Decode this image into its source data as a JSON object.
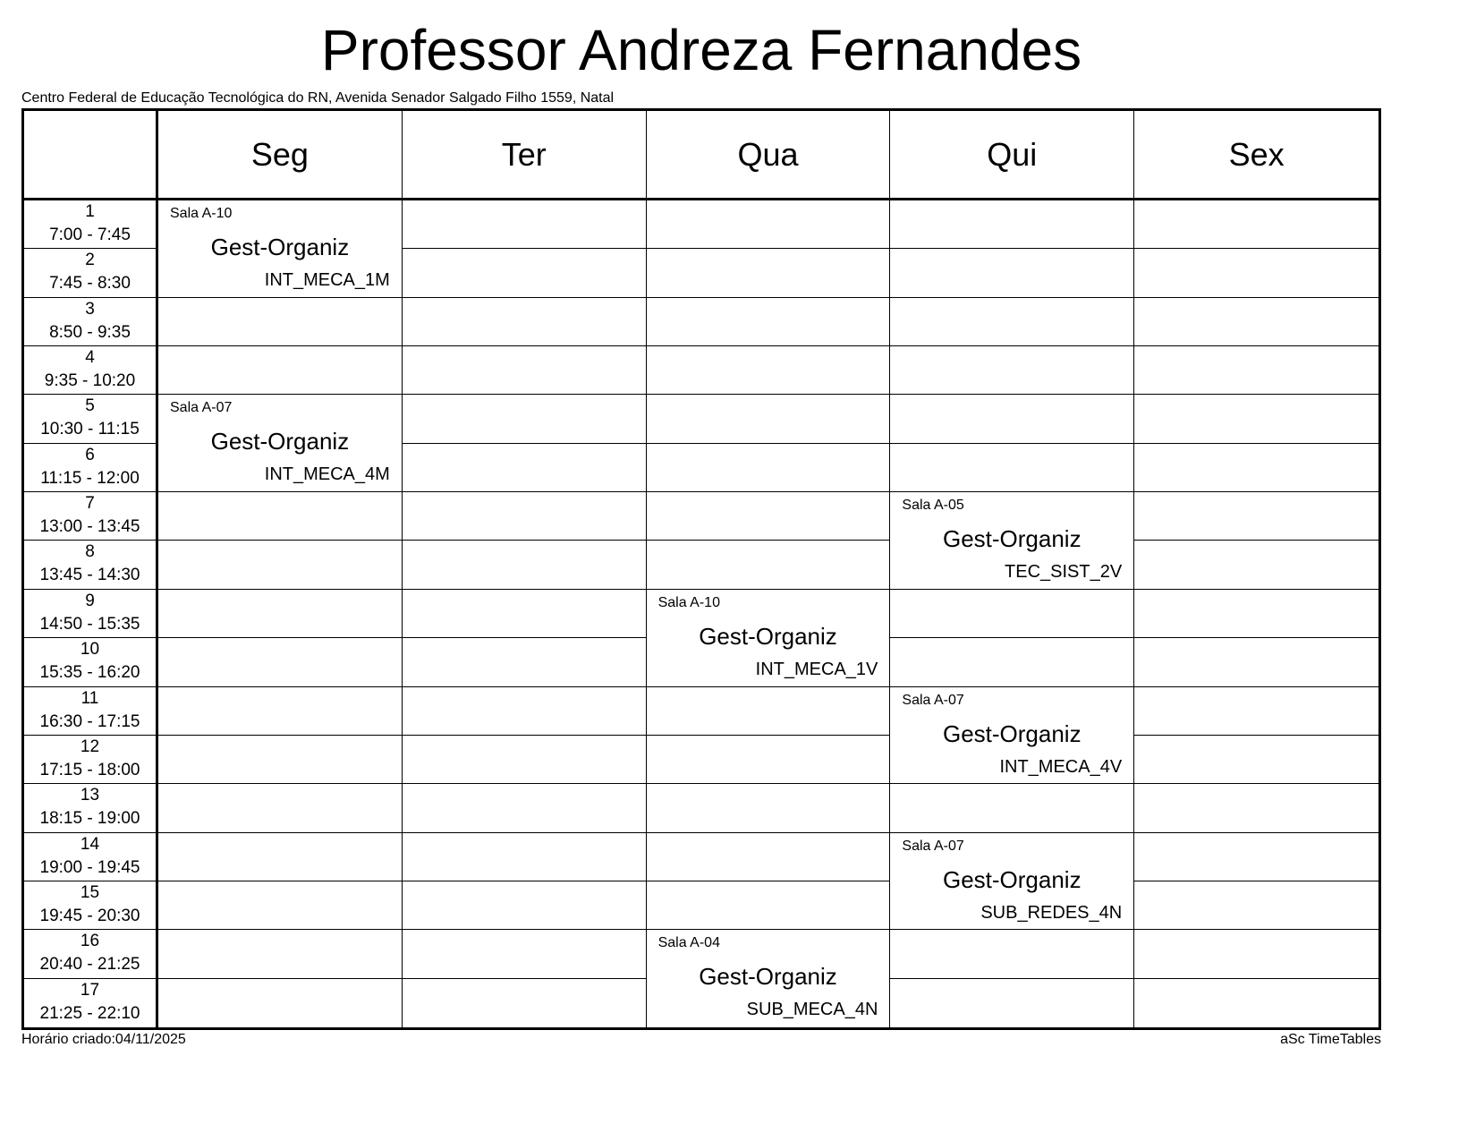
{
  "title": "Professor Andreza Fernandes",
  "subtitle": "Centro Federal de Educação Tecnológica do RN, Avenida Senador Salgado Filho 1559, Natal",
  "days": [
    "Seg",
    "Ter",
    "Qua",
    "Qui",
    "Sex"
  ],
  "periods": [
    {
      "num": "1",
      "time": "7:00 - 7:45"
    },
    {
      "num": "2",
      "time": "7:45 - 8:30"
    },
    {
      "num": "3",
      "time": "8:50 - 9:35"
    },
    {
      "num": "4",
      "time": "9:35 - 10:20"
    },
    {
      "num": "5",
      "time": "10:30 - 11:15"
    },
    {
      "num": "6",
      "time": "11:15 - 12:00"
    },
    {
      "num": "7",
      "time": "13:00 - 13:45"
    },
    {
      "num": "8",
      "time": "13:45 - 14:30"
    },
    {
      "num": "9",
      "time": "14:50 - 15:35"
    },
    {
      "num": "10",
      "time": "15:35 - 16:20"
    },
    {
      "num": "11",
      "time": "16:30 - 17:15"
    },
    {
      "num": "12",
      "time": "17:15 - 18:00"
    },
    {
      "num": "13",
      "time": "18:15 - 19:00"
    },
    {
      "num": "14",
      "time": "19:00 - 19:45"
    },
    {
      "num": "15",
      "time": "19:45 - 20:30"
    },
    {
      "num": "16",
      "time": "20:40 - 21:25"
    },
    {
      "num": "17",
      "time": "21:25 - 22:10"
    }
  ],
  "lessons": [
    {
      "day": 0,
      "start": 1,
      "span": 2,
      "room": "Sala A-10",
      "subject": "Gest-Organiz",
      "class": "INT_MECA_1M"
    },
    {
      "day": 0,
      "start": 5,
      "span": 2,
      "room": "Sala A-07",
      "subject": "Gest-Organiz",
      "class": "INT_MECA_4M"
    },
    {
      "day": 3,
      "start": 7,
      "span": 2,
      "room": "Sala A-05",
      "subject": "Gest-Organiz",
      "class": "TEC_SIST_2V"
    },
    {
      "day": 2,
      "start": 9,
      "span": 2,
      "room": "Sala A-10",
      "subject": "Gest-Organiz",
      "class": "INT_MECA_1V"
    },
    {
      "day": 3,
      "start": 11,
      "span": 2,
      "room": "Sala A-07",
      "subject": "Gest-Organiz",
      "class": "INT_MECA_4V"
    },
    {
      "day": 3,
      "start": 14,
      "span": 2,
      "room": "Sala A-07",
      "subject": "Gest-Organiz",
      "class": "SUB_REDES_4N"
    },
    {
      "day": 2,
      "start": 16,
      "span": 2,
      "room": "Sala A-04",
      "subject": "Gest-Organiz",
      "class": "SUB_MECA_4N"
    }
  ],
  "footer": {
    "created": "Horário criado:04/11/2025",
    "generator": "aSc TimeTables"
  }
}
